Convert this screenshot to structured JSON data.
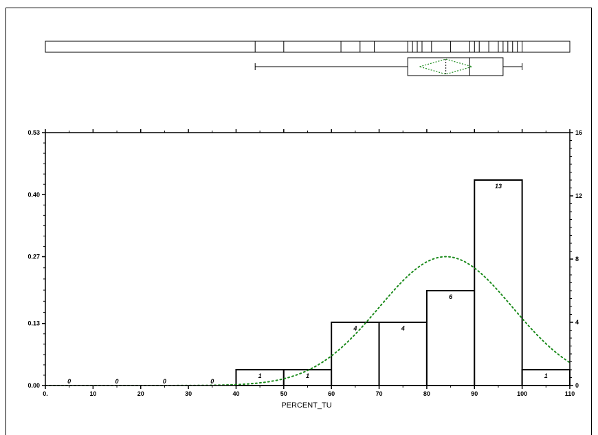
{
  "chart_data": {
    "type": "bar",
    "xlabel": "PERCENT_TU",
    "x_ticks": [
      0,
      10,
      20,
      30,
      40,
      50,
      60,
      70,
      80,
      90,
      100,
      110
    ],
    "x_tick_labels": [
      "0.",
      "10",
      "20",
      "30",
      "40",
      "50",
      "60",
      "70",
      "80",
      "90",
      "100",
      "110"
    ],
    "xlim": [
      0,
      110
    ],
    "left_axis": {
      "ticks": [
        0.0,
        0.13,
        0.27,
        0.4,
        0.53
      ],
      "tick_labels": [
        "0.00",
        "0.13",
        "0.27",
        "0.40",
        "0.53"
      ],
      "ylim": [
        0,
        0.53
      ]
    },
    "right_axis": {
      "ticks": [
        0,
        4,
        8,
        12,
        16
      ],
      "tick_labels": [
        "0",
        "4",
        "8",
        "12",
        "16"
      ],
      "ylim": [
        0,
        16
      ]
    },
    "bins": [
      {
        "start": 0,
        "end": 10,
        "count": 0,
        "label": "0"
      },
      {
        "start": 10,
        "end": 20,
        "count": 0,
        "label": "0"
      },
      {
        "start": 20,
        "end": 30,
        "count": 0,
        "label": "0"
      },
      {
        "start": 30,
        "end": 40,
        "count": 0,
        "label": "0"
      },
      {
        "start": 40,
        "end": 50,
        "count": 1,
        "label": "1"
      },
      {
        "start": 50,
        "end": 60,
        "count": 1,
        "label": "1"
      },
      {
        "start": 60,
        "end": 70,
        "count": 4,
        "label": "4"
      },
      {
        "start": 70,
        "end": 80,
        "count": 4,
        "label": "4"
      },
      {
        "start": 80,
        "end": 90,
        "count": 6,
        "label": "6"
      },
      {
        "start": 90,
        "end": 100,
        "count": 13,
        "label": "13"
      },
      {
        "start": 100,
        "end": 110,
        "count": 1,
        "label": "1"
      }
    ],
    "normal_curve": {
      "mean": 84,
      "sd": 14,
      "peak_density": 0.27,
      "color": "#1a8a1a"
    },
    "rug_values": [
      44,
      50,
      62,
      66,
      69,
      76,
      77,
      78,
      79,
      81,
      85,
      89,
      90,
      91,
      93,
      95,
      96,
      97,
      98,
      99,
      100
    ],
    "box_plot": {
      "min": 44,
      "q1": 76,
      "median": 89,
      "q3": 96,
      "max": 100,
      "mean": 84,
      "ci_low": 78.5,
      "ci_high": 89.5,
      "diamond_color": "#1a8a1a"
    },
    "grid": false
  }
}
